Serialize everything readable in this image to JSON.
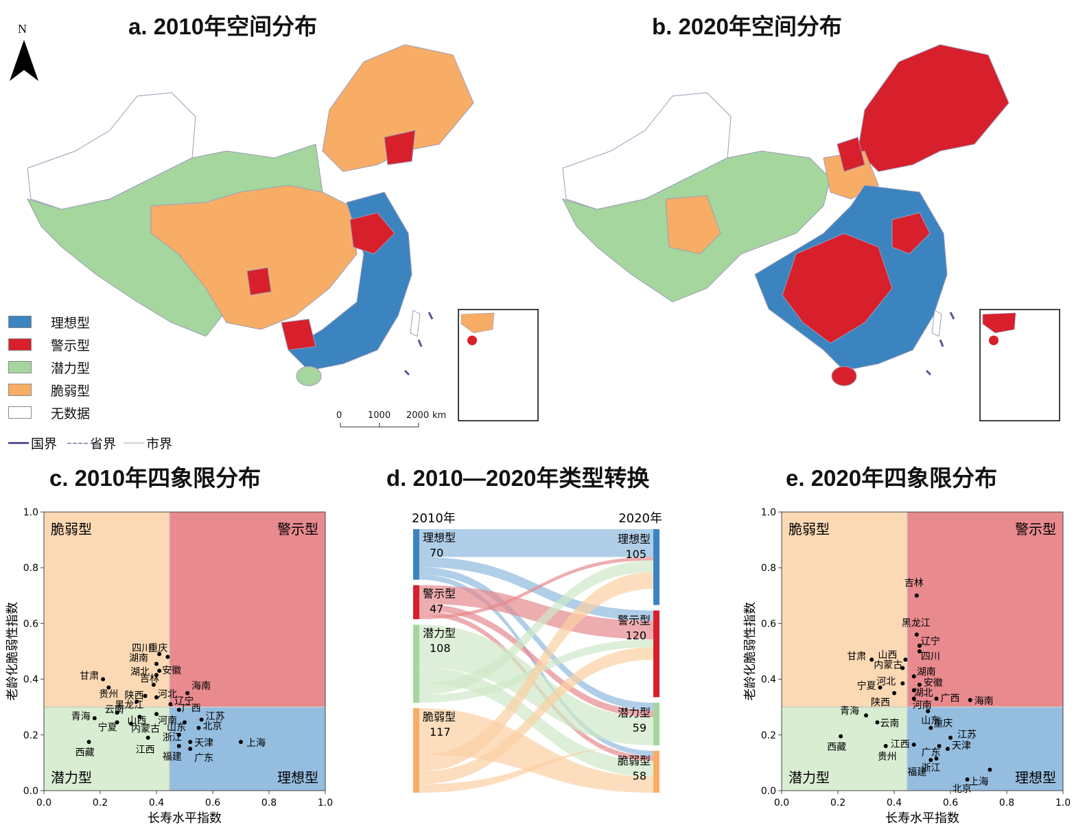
{
  "panels": {
    "a_title": "a. 2010年空间分布",
    "b_title": "b. 2020年空间分布",
    "c_title": "c. 2010年四象限分布",
    "d_title": "d. 2010—2020年类型转换",
    "e_title": "e. 2020年四象限分布"
  },
  "compass": {
    "label": "N",
    "icon": "north-arrow-icon"
  },
  "legend": [
    {
      "label": "理想型",
      "color": "#3c84c0"
    },
    {
      "label": "警示型",
      "color": "#d7202b"
    },
    {
      "label": "潜力型",
      "color": "#a5d69d"
    },
    {
      "label": "脆弱型",
      "color": "#f8ad66"
    },
    {
      "label": "无数据",
      "color": "#ffffff"
    }
  ],
  "border_key": [
    {
      "label": "国界",
      "style": "national"
    },
    {
      "label": "省界",
      "style": "province"
    },
    {
      "label": "市界",
      "style": "city"
    }
  ],
  "scale_bar": {
    "ticks": [
      "0",
      "1000",
      "2000"
    ],
    "unit": "km"
  },
  "colors": {
    "ideal_bg": "#95bddf",
    "warning_bg": "#e88a8e",
    "potential_bg": "#d8edd2",
    "fragile_bg": "#fbd9b4",
    "ideal": "#3c84c0",
    "warning": "#d7202b",
    "potential": "#a5d69d",
    "fragile": "#f8ad66"
  },
  "chart_data": [
    {
      "type": "scatter",
      "panel": "c",
      "title": "c. 2010年四象限分布",
      "xlabel": "长寿水平指数",
      "ylabel": "老龄化脆弱性指数",
      "xlim": [
        0.0,
        1.0
      ],
      "ylim": [
        0.0,
        1.0
      ],
      "xticks": [
        "0.0",
        "0.2",
        "0.4",
        "0.6",
        "0.8",
        "1.0"
      ],
      "yticks": [
        "0.0",
        "0.2",
        "0.4",
        "0.6",
        "0.8",
        "1.0"
      ],
      "divider_x": 0.446,
      "divider_y": 0.3,
      "quadrants": {
        "top_left": "脆弱型",
        "top_right": "警示型",
        "bottom_left": "潜力型",
        "bottom_right": "理想型"
      },
      "points": [
        {
          "name": "重庆",
          "x": 0.44,
          "y": 0.48
        },
        {
          "name": "四川",
          "x": 0.41,
          "y": 0.49
        },
        {
          "name": "湖南",
          "x": 0.4,
          "y": 0.455
        },
        {
          "name": "安徽",
          "x": 0.41,
          "y": 0.43
        },
        {
          "name": "湖北",
          "x": 0.4,
          "y": 0.415
        },
        {
          "name": "甘肃",
          "x": 0.21,
          "y": 0.4
        },
        {
          "name": "吉林",
          "x": 0.39,
          "y": 0.38
        },
        {
          "name": "贵州",
          "x": 0.23,
          "y": 0.37
        },
        {
          "name": "陕西",
          "x": 0.36,
          "y": 0.34
        },
        {
          "name": "河北",
          "x": 0.4,
          "y": 0.335
        },
        {
          "name": "黑龙江",
          "x": 0.33,
          "y": 0.32
        },
        {
          "name": "海南",
          "x": 0.51,
          "y": 0.35
        },
        {
          "name": "辽宁",
          "x": 0.45,
          "y": 0.31
        },
        {
          "name": "云南",
          "x": 0.26,
          "y": 0.28
        },
        {
          "name": "广西",
          "x": 0.48,
          "y": 0.29
        },
        {
          "name": "河南",
          "x": 0.4,
          "y": 0.275
        },
        {
          "name": "青海",
          "x": 0.18,
          "y": 0.26
        },
        {
          "name": "山西",
          "x": 0.34,
          "y": 0.265
        },
        {
          "name": "江苏",
          "x": 0.56,
          "y": 0.255
        },
        {
          "name": "宁夏",
          "x": 0.26,
          "y": 0.245
        },
        {
          "name": "内蒙古",
          "x": 0.31,
          "y": 0.24
        },
        {
          "name": "山东",
          "x": 0.5,
          "y": 0.245
        },
        {
          "name": "北京",
          "x": 0.55,
          "y": 0.225
        },
        {
          "name": "浙江",
          "x": 0.48,
          "y": 0.2
        },
        {
          "name": "西藏",
          "x": 0.16,
          "y": 0.175
        },
        {
          "name": "江西",
          "x": 0.37,
          "y": 0.19
        },
        {
          "name": "天津",
          "x": 0.52,
          "y": 0.175
        },
        {
          "name": "上海",
          "x": 0.7,
          "y": 0.175
        },
        {
          "name": "福建",
          "x": 0.48,
          "y": 0.16
        },
        {
          "name": "广东",
          "x": 0.52,
          "y": 0.15
        }
      ]
    },
    {
      "type": "sankey",
      "panel": "d",
      "title": "d. 2010—2020年类型转换",
      "left_label": "2010年",
      "right_label": "2020年",
      "left_nodes": [
        {
          "name": "理想型",
          "value": 70
        },
        {
          "name": "警示型",
          "value": 47
        },
        {
          "name": "潜力型",
          "value": 108
        },
        {
          "name": "脆弱型",
          "value": 117
        }
      ],
      "right_nodes": [
        {
          "name": "理想型",
          "value": 105
        },
        {
          "name": "警示型",
          "value": 120
        },
        {
          "name": "潜力型",
          "value": 59
        },
        {
          "name": "脆弱型",
          "value": 58
        }
      ]
    },
    {
      "type": "scatter",
      "panel": "e",
      "title": "e. 2020年四象限分布",
      "xlabel": "长寿水平指数",
      "ylabel": "老龄化脆弱性指数",
      "xlim": [
        0.0,
        1.0
      ],
      "ylim": [
        0.0,
        1.0
      ],
      "xticks": [
        "0.0",
        "0.2",
        "0.4",
        "0.6",
        "0.8",
        "1.0"
      ],
      "yticks": [
        "0.0",
        "0.2",
        "0.4",
        "0.6",
        "0.8",
        "1.0"
      ],
      "divider_x": 0.446,
      "divider_y": 0.3,
      "quadrants": {
        "top_left": "脆弱型",
        "top_right": "警示型",
        "bottom_left": "潜力型",
        "bottom_right": "理想型"
      },
      "points": [
        {
          "name": "吉林",
          "x": 0.48,
          "y": 0.7
        },
        {
          "name": "黑龙江",
          "x": 0.48,
          "y": 0.56
        },
        {
          "name": "辽宁",
          "x": 0.49,
          "y": 0.52
        },
        {
          "name": "四川",
          "x": 0.49,
          "y": 0.5
        },
        {
          "name": "山西",
          "x": 0.44,
          "y": 0.47
        },
        {
          "name": "甘肃",
          "x": 0.32,
          "y": 0.47
        },
        {
          "name": "内蒙古",
          "x": 0.43,
          "y": 0.44
        },
        {
          "name": "湖南",
          "x": 0.47,
          "y": 0.41
        },
        {
          "name": "安徽",
          "x": 0.49,
          "y": 0.38
        },
        {
          "name": "河北",
          "x": 0.43,
          "y": 0.385
        },
        {
          "name": "湖北",
          "x": 0.47,
          "y": 0.36
        },
        {
          "name": "宁夏",
          "x": 0.35,
          "y": 0.37
        },
        {
          "name": "陕西",
          "x": 0.4,
          "y": 0.35
        },
        {
          "name": "广西",
          "x": 0.55,
          "y": 0.33
        },
        {
          "name": "河南",
          "x": 0.47,
          "y": 0.33
        },
        {
          "name": "海南",
          "x": 0.67,
          "y": 0.325
        },
        {
          "name": "山东",
          "x": 0.52,
          "y": 0.285
        },
        {
          "name": "青海",
          "x": 0.3,
          "y": 0.27
        },
        {
          "name": "云南",
          "x": 0.34,
          "y": 0.245
        },
        {
          "name": "重庆",
          "x": 0.53,
          "y": 0.225
        },
        {
          "name": "江苏",
          "x": 0.6,
          "y": 0.19
        },
        {
          "name": "西藏",
          "x": 0.21,
          "y": 0.195
        },
        {
          "name": "江西",
          "x": 0.47,
          "y": 0.165
        },
        {
          "name": "广东",
          "x": 0.56,
          "y": 0.16
        },
        {
          "name": "天津",
          "x": 0.59,
          "y": 0.15
        },
        {
          "name": "贵州",
          "x": 0.37,
          "y": 0.16
        },
        {
          "name": "浙江",
          "x": 0.55,
          "y": 0.115
        },
        {
          "name": "福建",
          "x": 0.53,
          "y": 0.11
        },
        {
          "name": "上海",
          "x": 0.74,
          "y": 0.075
        },
        {
          "name": "北京",
          "x": 0.66,
          "y": 0.04
        }
      ]
    }
  ]
}
